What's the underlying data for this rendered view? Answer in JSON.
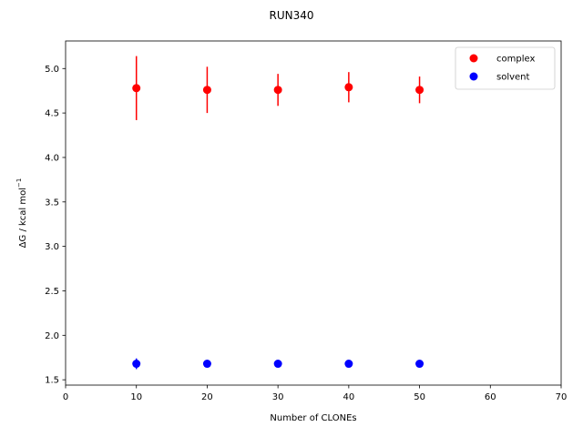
{
  "chart_data": {
    "type": "scatter",
    "title": "RUN340",
    "xlabel": "Number of CLONEs",
    "ylabel_main": "ΔG / kcal mol",
    "ylabel_sup": "−1",
    "xlim": [
      0,
      70
    ],
    "ylim": [
      1.44,
      5.31
    ],
    "xticks": [
      "0",
      "10",
      "20",
      "30",
      "40",
      "50",
      "60",
      "70"
    ],
    "xtick_values": [
      0,
      10,
      20,
      30,
      40,
      50,
      60,
      70
    ],
    "yticks": [
      "1.5",
      "2.0",
      "2.5",
      "3.0",
      "3.5",
      "4.0",
      "4.5",
      "5.0"
    ],
    "ytick_values": [
      1.5,
      2.0,
      2.5,
      3.0,
      3.5,
      4.0,
      4.5,
      5.0
    ],
    "grid": false,
    "legend_position": "top-right",
    "series": [
      {
        "name": "complex",
        "color": "#ff0000",
        "x": [
          10,
          20,
          30,
          40,
          50
        ],
        "y": [
          4.78,
          4.76,
          4.76,
          4.79,
          4.76
        ],
        "yerr": [
          0.36,
          0.26,
          0.18,
          0.17,
          0.15
        ]
      },
      {
        "name": "solvent",
        "color": "#0000ff",
        "x": [
          10,
          20,
          30,
          40,
          50
        ],
        "y": [
          1.68,
          1.68,
          1.68,
          1.68,
          1.68
        ],
        "yerr": [
          0.06,
          0.0,
          0.0,
          0.0,
          0.0
        ]
      }
    ]
  }
}
